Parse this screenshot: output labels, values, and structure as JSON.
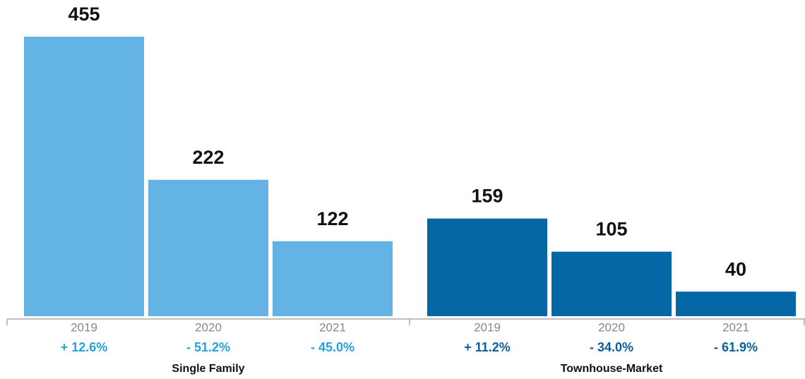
{
  "chart_data": [
    {
      "type": "bar",
      "title": "Single Family",
      "categories": [
        "2019",
        "2020",
        "2021"
      ],
      "values": [
        455,
        222,
        122
      ],
      "changes": [
        "+ 12.6%",
        "- 51.2%",
        "- 45.0%"
      ],
      "color": "#63b4e4",
      "change_color": "#2a9fd8"
    },
    {
      "type": "bar",
      "title": "Townhouse-Market",
      "categories": [
        "2019",
        "2020",
        "2021"
      ],
      "values": [
        159,
        105,
        40
      ],
      "changes": [
        "+ 11.2%",
        "- 34.0%",
        "- 61.9%"
      ],
      "color": "#0567a5",
      "change_color": "#0b5e9a"
    }
  ]
}
